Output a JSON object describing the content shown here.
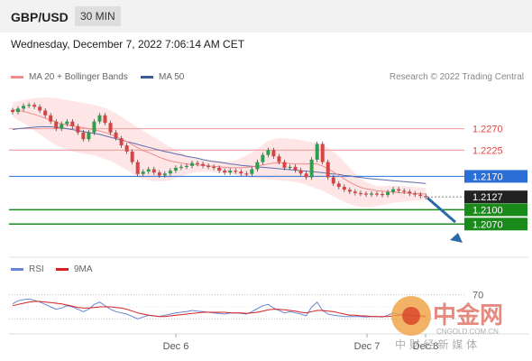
{
  "header": {
    "pair": "GBP/USD",
    "timeframe": "30 MIN"
  },
  "date_line": "Wednesday, December 7, 2022 7:06:14 AM CET",
  "legend": {
    "ma20": "MA 20 + Bollinger Bands",
    "ma50": "MA 50",
    "credit": "Research © 2022 Trading Central"
  },
  "rsi_legend": {
    "rsi": "RSI",
    "ma9": "9MA"
  },
  "colors": {
    "up": "#2e9e4f",
    "down": "#d64545",
    "ma20": "#f28b8b",
    "ma50": "#5b6fae",
    "band": "#ffd9d9",
    "support": "#1a8a1a",
    "pivot": "#2b6fd6",
    "resist": "#f4a6a6"
  },
  "watermark": {
    "brand": "中金网",
    "url": "CNGOLD.COM.CN",
    "tagline": "中 财 经 新 媒 体"
  },
  "chart_data": {
    "type": "candlestick",
    "title": "GBP/USD",
    "interval": "30 MIN",
    "x_ticks": [
      "Dec 6",
      "Dec 7",
      "Dec 8"
    ],
    "y_range": [
      1.201,
      1.236
    ],
    "levels": [
      {
        "label": "1.2270",
        "value": 1.227,
        "kind": "resistance"
      },
      {
        "label": "1.2225",
        "value": 1.2225,
        "kind": "resistance"
      },
      {
        "label": "1.2170",
        "value": 1.217,
        "kind": "pivot"
      },
      {
        "label": "1.2127",
        "value": 1.2127,
        "kind": "last"
      },
      {
        "label": "1.2100",
        "value": 1.21,
        "kind": "support"
      },
      {
        "label": "1.2070",
        "value": 1.207,
        "kind": "support"
      }
    ],
    "close": [
      1.2305,
      1.2312,
      1.2318,
      1.232,
      1.2316,
      1.2308,
      1.2298,
      1.2285,
      1.227,
      1.228,
      1.2285,
      1.2275,
      1.2262,
      1.2248,
      1.2262,
      1.2285,
      1.2298,
      1.2282,
      1.2262,
      1.225,
      1.2235,
      1.2222,
      1.22,
      1.2175,
      1.218,
      1.2185,
      1.2178,
      1.2172,
      1.2176,
      1.2182,
      1.2188,
      1.219,
      1.2192,
      1.2198,
      1.2196,
      1.2192,
      1.219,
      1.2188,
      1.2182,
      1.2178,
      1.2182,
      1.218,
      1.2176,
      1.2175,
      1.2185,
      1.22,
      1.2215,
      1.2225,
      1.2212,
      1.22,
      1.2188,
      1.219,
      1.2183,
      1.2176,
      1.2168,
      1.2205,
      1.2238,
      1.22,
      1.2168,
      1.2155,
      1.2148,
      1.2142,
      1.2138,
      1.2135,
      1.2134,
      1.2132,
      1.2134,
      1.2133,
      1.2131,
      1.2137,
      1.2143,
      1.214,
      1.2138,
      1.2134,
      1.2132,
      1.2129,
      1.2127
    ],
    "ma20": [
      1.231,
      1.2308,
      1.2306,
      1.2303,
      1.23,
      1.2296,
      1.2292,
      1.2288,
      1.2284,
      1.228,
      1.2278,
      1.2276,
      1.2274,
      1.2272,
      1.227,
      1.2268,
      1.2265,
      1.2262,
      1.2258,
      1.2253,
      1.2248,
      1.2243,
      1.2236,
      1.223,
      1.2224,
      1.222,
      1.2215,
      1.221,
      1.2206,
      1.2202,
      1.22,
      1.2198,
      1.2196,
      1.2195,
      1.2194,
      1.2193,
      1.2192,
      1.2191,
      1.219,
      1.2189,
      1.2188,
      1.2188,
      1.2188,
      1.2189,
      1.219,
      1.2192,
      1.2194,
      1.2196,
      1.2198,
      1.2198,
      1.2198,
      1.2197,
      1.2196,
      1.2196,
      1.2196,
      1.2197,
      1.2196,
      1.2192,
      1.2186,
      1.2179,
      1.2172,
      1.2165,
      1.2158,
      1.2152,
      1.2147,
      1.2144,
      1.2142,
      1.214,
      1.2139,
      1.2138,
      1.2137,
      1.2136,
      1.2135,
      1.2135,
      1.2134,
      1.2134,
      1.2133
    ],
    "bb_upper": [
      1.2325,
      1.2328,
      1.233,
      1.2332,
      1.2334,
      1.2335,
      1.2336,
      1.2335,
      1.2334,
      1.2332,
      1.233,
      1.2328,
      1.2326,
      1.2324,
      1.2322,
      1.232,
      1.2317,
      1.2313,
      1.2308,
      1.2302,
      1.2295,
      1.2288,
      1.228,
      1.2272,
      1.2265,
      1.2258,
      1.2252,
      1.2245,
      1.2238,
      1.2232,
      1.2226,
      1.222,
      1.2214,
      1.221,
      1.2207,
      1.2205,
      1.2204,
      1.2203,
      1.2202,
      1.2201,
      1.2202,
      1.2204,
      1.2208,
      1.2214,
      1.222,
      1.2228,
      1.2236,
      1.2244,
      1.2248,
      1.225,
      1.225,
      1.2249,
      1.2248,
      1.2246,
      1.2244,
      1.2242,
      1.224,
      1.2236,
      1.223,
      1.2222,
      1.2212,
      1.22,
      1.2188,
      1.2176,
      1.2166,
      1.2158,
      1.2153,
      1.215,
      1.2149,
      1.215,
      1.2151,
      1.2151,
      1.215,
      1.2149,
      1.2148,
      1.2147,
      1.2146
    ],
    "bb_lower": [
      1.2295,
      1.2288,
      1.2282,
      1.2274,
      1.2266,
      1.2258,
      1.225,
      1.2242,
      1.2236,
      1.223,
      1.2226,
      1.2222,
      1.222,
      1.2218,
      1.2216,
      1.2214,
      1.221,
      1.2206,
      1.2202,
      1.2196,
      1.219,
      1.2184,
      1.2176,
      1.2168,
      1.2164,
      1.2162,
      1.216,
      1.216,
      1.216,
      1.2162,
      1.2166,
      1.217,
      1.2174,
      1.2177,
      1.2179,
      1.218,
      1.218,
      1.2179,
      1.2178,
      1.2177,
      1.2175,
      1.2173,
      1.2171,
      1.2169,
      1.2167,
      1.2166,
      1.2165,
      1.2164,
      1.2163,
      1.2162,
      1.2161,
      1.216,
      1.2158,
      1.2156,
      1.2152,
      1.2148,
      1.2144,
      1.214,
      1.2134,
      1.2128,
      1.2122,
      1.2116,
      1.2112,
      1.2108,
      1.2106,
      1.2105,
      1.2106,
      1.2108,
      1.211,
      1.2112,
      1.2114,
      1.2116,
      1.2117,
      1.2118,
      1.2119,
      1.212,
      1.212
    ],
    "ma50": [
      1.2268,
      1.227,
      1.2271,
      1.2272,
      1.2273,
      1.2274,
      1.2274,
      1.2274,
      1.2273,
      1.2272,
      1.227,
      1.2268,
      1.2266,
      1.2264,
      1.2262,
      1.226,
      1.2258,
      1.2255,
      1.2252,
      1.2249,
      1.2246,
      1.2243,
      1.224,
      1.2237,
      1.2234,
      1.2231,
      1.2228,
      1.2225,
      1.2222,
      1.222,
      1.2217,
      1.2215,
      1.2212,
      1.221,
      1.2208,
      1.2205,
      1.2203,
      1.2201,
      1.22,
      1.2198,
      1.2196,
      1.2195,
      1.2193,
      1.2192,
      1.2191,
      1.219,
      1.2189,
      1.2188,
      1.2187,
      1.2186,
      1.2185,
      1.2184,
      1.2183,
      1.2182,
      1.2181,
      1.218,
      1.2179,
      1.2178,
      1.2176,
      1.2175,
      1.2174,
      1.2172,
      1.2171,
      1.2169,
      1.2168,
      1.2166,
      1.2165,
      1.2164,
      1.2163,
      1.2162,
      1.2161,
      1.216,
      1.2159,
      1.2158,
      1.2157,
      1.2156,
      1.2155
    ],
    "rsi": {
      "label": "RSI",
      "ma_label": "9MA",
      "ticks": [
        "70"
      ],
      "values": [
        55,
        60,
        62,
        63,
        61,
        58,
        54,
        50,
        46,
        48,
        52,
        50,
        46,
        42,
        46,
        54,
        58,
        52,
        46,
        42,
        40,
        38,
        34,
        30,
        33,
        36,
        35,
        34,
        36,
        38,
        40,
        41,
        42,
        44,
        43,
        42,
        41,
        40,
        39,
        38,
        40,
        40,
        39,
        38,
        42,
        47,
        52,
        54,
        48,
        44,
        40,
        42,
        40,
        38,
        35,
        50,
        58,
        44,
        38,
        36,
        35,
        34,
        34,
        34,
        34,
        33,
        34,
        34,
        33,
        36,
        40,
        38,
        37,
        36,
        35,
        34,
        33
      ],
      "ma9": [
        52,
        54,
        56,
        58,
        59,
        59,
        58,
        57,
        56,
        55,
        53,
        51,
        49,
        48,
        48,
        49,
        50,
        50,
        50,
        49,
        48,
        46,
        43,
        40,
        38,
        36,
        35,
        34,
        34,
        35,
        36,
        37,
        38,
        39,
        40,
        41,
        41,
        41,
        41,
        41,
        40,
        40,
        40,
        39,
        40,
        41,
        43,
        45,
        46,
        46,
        45,
        44,
        43,
        41,
        40,
        42,
        44,
        44,
        43,
        42,
        40,
        38,
        36,
        36,
        35,
        35,
        34,
        34,
        34,
        34,
        35,
        36,
        36,
        36,
        36,
        35,
        35
      ]
    }
  }
}
